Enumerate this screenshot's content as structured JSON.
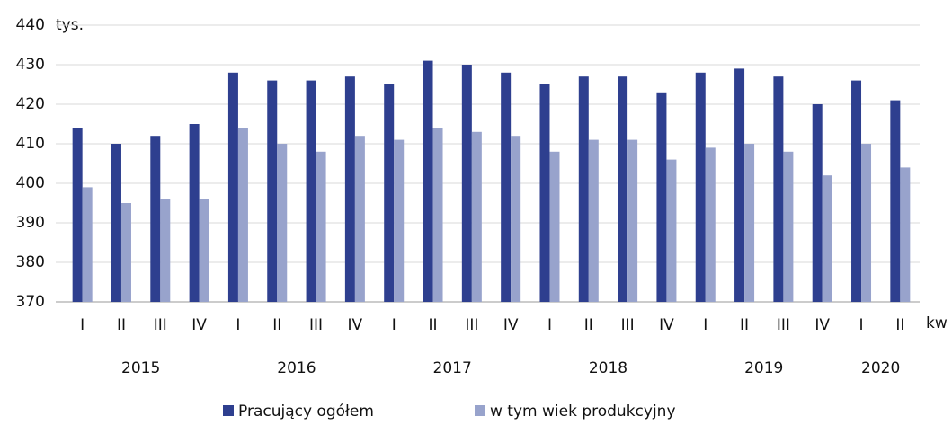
{
  "chart_data": {
    "type": "bar",
    "y_unit": "tys.",
    "x_unit": "kw",
    "categories": [
      "I",
      "II",
      "III",
      "IV",
      "I",
      "II",
      "III",
      "IV",
      "I",
      "II",
      "III",
      "IV",
      "I",
      "II",
      "III",
      "IV",
      "I",
      "II",
      "III",
      "IV",
      "I",
      "II"
    ],
    "year_groups": [
      {
        "label": "2015",
        "count": 4
      },
      {
        "label": "2016",
        "count": 4
      },
      {
        "label": "2017",
        "count": 4
      },
      {
        "label": "2018",
        "count": 4
      },
      {
        "label": "2019",
        "count": 4
      },
      {
        "label": "2020",
        "count": 2
      }
    ],
    "series": [
      {
        "name": "Pracujący ogółem",
        "color": "#2e3f8f",
        "values": [
          414,
          410,
          412,
          415,
          428,
          426,
          426,
          427,
          425,
          431,
          430,
          428,
          425,
          427,
          427,
          423,
          428,
          429,
          427,
          420,
          426,
          421
        ]
      },
      {
        "name": "w tym wiek produkcyjny",
        "color": "#98a3cc",
        "values": [
          399,
          395,
          396,
          396,
          414,
          410,
          408,
          412,
          411,
          414,
          413,
          412,
          408,
          411,
          411,
          406,
          409,
          410,
          408,
          402,
          410,
          404
        ]
      }
    ],
    "ylim": [
      370,
      440
    ],
    "yticks": [
      370,
      380,
      390,
      400,
      410,
      420,
      430,
      440
    ],
    "grid": true,
    "legend": "bottom"
  }
}
